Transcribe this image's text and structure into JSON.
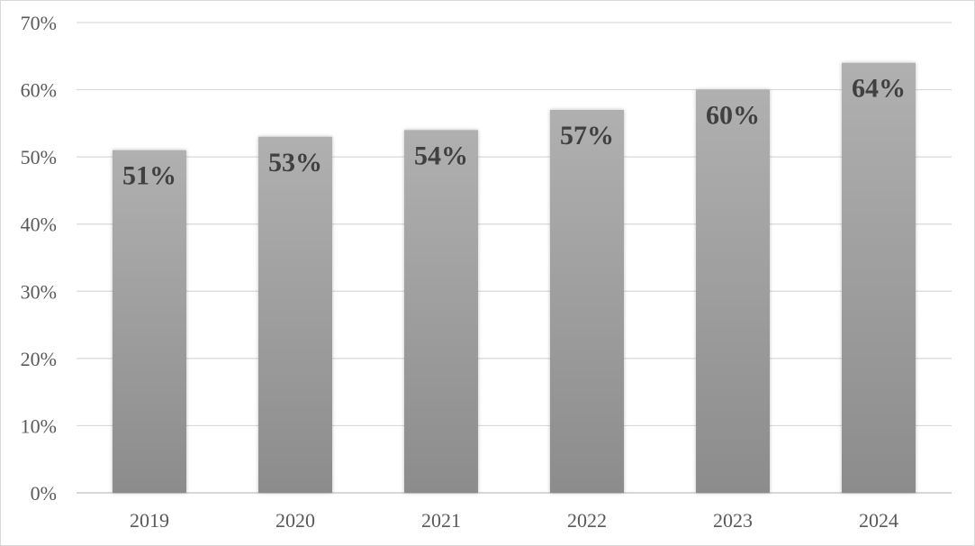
{
  "chart_data": {
    "type": "bar",
    "categories": [
      "2019",
      "2020",
      "2021",
      "2022",
      "2023",
      "2024"
    ],
    "values": [
      51,
      53,
      54,
      57,
      60,
      64
    ],
    "data_labels": [
      "51%",
      "53%",
      "54%",
      "57%",
      "60%",
      "64%"
    ],
    "y_ticks": [
      "0%",
      "10%",
      "20%",
      "30%",
      "40%",
      "50%",
      "60%",
      "70%"
    ],
    "ylim": [
      0,
      70
    ],
    "grid": true,
    "legend": "none",
    "colors": {
      "bar_top": "#b0b0b0",
      "bar_bottom": "#8c8c8c",
      "grid": "#d9d9d9",
      "label": "#404040",
      "tick": "#595959"
    }
  }
}
